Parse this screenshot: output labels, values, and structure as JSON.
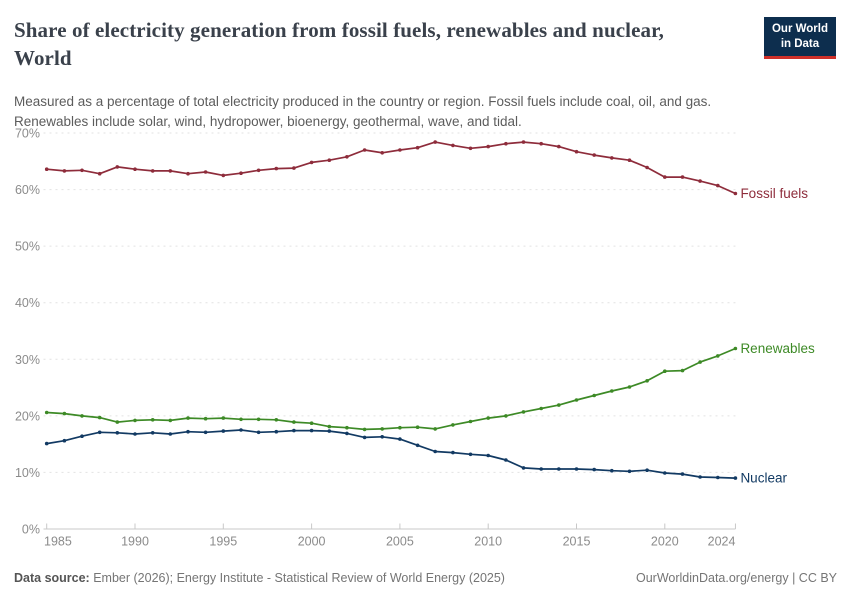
{
  "header": {
    "title": "Share of electricity generation from fossil fuels, renewables and nuclear, World",
    "logo_line1": "Our World",
    "logo_line2": "in Data"
  },
  "subtitle": "Measured as a percentage of total electricity produced in the country or region. Fossil fuels include coal, oil, and gas. Renewables include solar, wind, hydropower, bioenergy, geothermal, wave, and tidal.",
  "colors": {
    "fossil": "#8e2c3b",
    "renewables": "#3d8a26",
    "nuclear": "#123a63",
    "grid": "#e2e2e2",
    "axis": "#c8c8c8",
    "tick_text": "#8b8b8b",
    "logo_bg": "#0d2e4e",
    "logo_stripe": "#cf3029"
  },
  "chart_data": {
    "type": "line",
    "title": "Share of electricity generation from fossil fuels, renewables and nuclear, World",
    "xlabel": "",
    "ylabel": "",
    "xlim": [
      1985,
      2024
    ],
    "ylim": [
      0,
      70
    ],
    "grid": "horizontal-dashed",
    "legend": "series-end-labels",
    "x": [
      1985,
      1986,
      1987,
      1988,
      1989,
      1990,
      1991,
      1992,
      1993,
      1994,
      1995,
      1996,
      1997,
      1998,
      1999,
      2000,
      2001,
      2002,
      2003,
      2004,
      2005,
      2006,
      2007,
      2008,
      2009,
      2010,
      2011,
      2012,
      2013,
      2014,
      2015,
      2016,
      2017,
      2018,
      2019,
      2020,
      2021,
      2022,
      2023,
      2024
    ],
    "series": [
      {
        "name": "Fossil fuels",
        "color": "#8e2c3b",
        "values": [
          63.6,
          63.3,
          63.4,
          62.8,
          64.0,
          63.6,
          63.3,
          63.3,
          62.8,
          63.1,
          62.5,
          62.9,
          63.4,
          63.7,
          63.8,
          64.8,
          65.2,
          65.8,
          67.0,
          66.5,
          67.0,
          67.4,
          68.4,
          67.8,
          67.3,
          67.6,
          68.1,
          68.4,
          68.1,
          67.6,
          66.7,
          66.1,
          65.6,
          65.2,
          63.9,
          62.2,
          62.2,
          61.5,
          60.7,
          59.3
        ]
      },
      {
        "name": "Renewables",
        "color": "#3d8a26",
        "values": [
          20.6,
          20.4,
          20.0,
          19.7,
          18.9,
          19.2,
          19.3,
          19.2,
          19.6,
          19.5,
          19.6,
          19.4,
          19.4,
          19.3,
          18.9,
          18.7,
          18.1,
          17.9,
          17.6,
          17.7,
          17.9,
          18.0,
          17.7,
          18.4,
          19.0,
          19.6,
          20.0,
          20.7,
          21.3,
          21.9,
          22.8,
          23.6,
          24.4,
          25.1,
          26.2,
          27.9,
          28.0,
          29.5,
          30.6,
          31.9
        ]
      },
      {
        "name": "Nuclear",
        "color": "#123a63",
        "values": [
          15.1,
          15.6,
          16.4,
          17.1,
          17.0,
          16.8,
          17.0,
          16.8,
          17.2,
          17.1,
          17.3,
          17.5,
          17.1,
          17.2,
          17.4,
          17.4,
          17.3,
          16.9,
          16.2,
          16.3,
          15.9,
          14.8,
          13.7,
          13.5,
          13.2,
          13.0,
          12.2,
          10.8,
          10.6,
          10.6,
          10.6,
          10.5,
          10.3,
          10.2,
          10.4,
          9.9,
          9.7,
          9.2,
          9.1,
          9.0
        ]
      }
    ],
    "y_ticks": [
      {
        "value": 0,
        "label": "0%"
      },
      {
        "value": 10,
        "label": "10%"
      },
      {
        "value": 20,
        "label": "20%"
      },
      {
        "value": 30,
        "label": "30%"
      },
      {
        "value": 40,
        "label": "40%"
      },
      {
        "value": 50,
        "label": "50%"
      },
      {
        "value": 60,
        "label": "60%"
      },
      {
        "value": 70,
        "label": "70%"
      }
    ],
    "x_ticks": [
      {
        "value": 1985,
        "label": "1985"
      },
      {
        "value": 1990,
        "label": "1990"
      },
      {
        "value": 1995,
        "label": "1995"
      },
      {
        "value": 2000,
        "label": "2000"
      },
      {
        "value": 2005,
        "label": "2005"
      },
      {
        "value": 2010,
        "label": "2010"
      },
      {
        "value": 2015,
        "label": "2015"
      },
      {
        "value": 2020,
        "label": "2020"
      },
      {
        "value": 2024,
        "label": "2024"
      }
    ]
  },
  "footer": {
    "source_label": "Data source:",
    "source_text": " Ember (2026); Energy Institute - Statistical Review of World Energy (2025)",
    "right_text": "OurWorldinData.org/energy | CC BY"
  }
}
